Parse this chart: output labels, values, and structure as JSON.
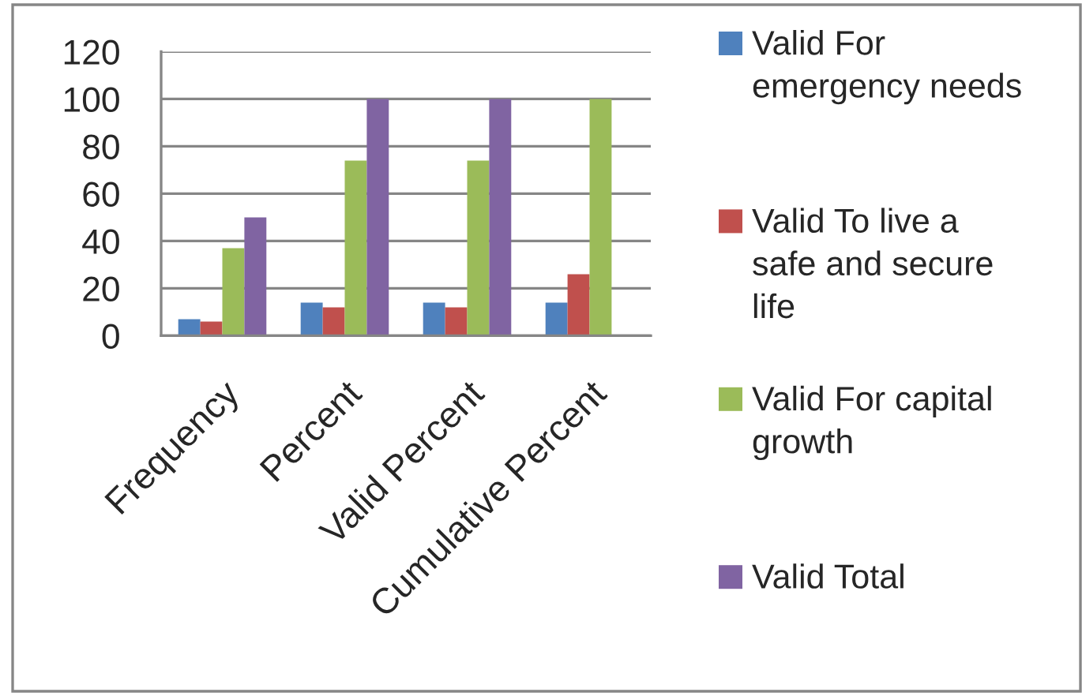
{
  "chart_data": {
    "type": "bar",
    "categories": [
      "Frequency",
      "Percent",
      "Valid Percent",
      "Cumulative Percent"
    ],
    "series": [
      {
        "name": "Valid For emergency needs",
        "color": "#4f81bd",
        "values": [
          7,
          14,
          14,
          14
        ]
      },
      {
        "name": "Valid To live a safe and secure life",
        "color": "#c0504d",
        "values": [
          6,
          12,
          12,
          26
        ]
      },
      {
        "name": "Valid For capital growth",
        "color": "#9bbb59",
        "values": [
          37,
          74,
          74,
          100
        ]
      },
      {
        "name": "Valid Total",
        "color": "#8064a2",
        "values": [
          50,
          100,
          100,
          null
        ]
      }
    ],
    "ylim": [
      0,
      120
    ],
    "yticks": [
      0,
      20,
      40,
      60,
      80,
      100,
      120
    ],
    "grid": "y",
    "legend": "right"
  }
}
